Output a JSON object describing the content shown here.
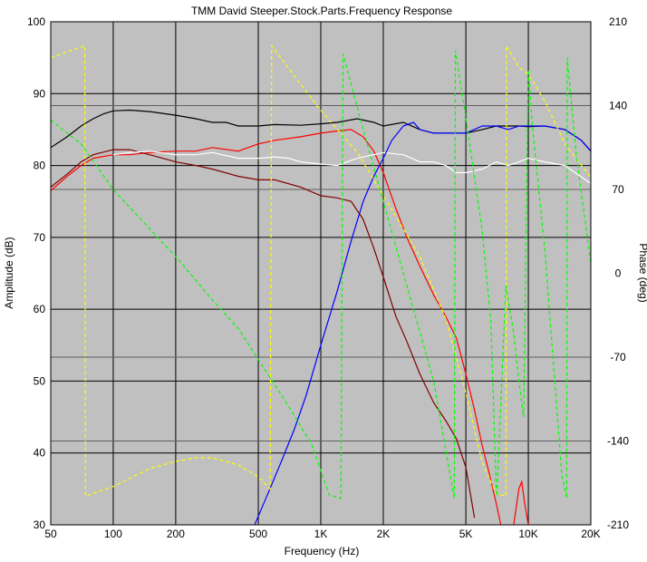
{
  "chart_data": {
    "type": "line",
    "title": "TMM David Steeper.Stock.Parts.Frequency Response",
    "xlabel": "Frequency (Hz)",
    "ylabel": "Amplitude (dB)",
    "y2label": "Phase (deg)",
    "x_scale": "log",
    "xlim": [
      50,
      20000
    ],
    "ylim": [
      30,
      100
    ],
    "y2lim": [
      -210,
      210
    ],
    "grid": true,
    "plot_background": "#c0c0c0",
    "x_ticks": [
      {
        "v": 50,
        "label": "50"
      },
      {
        "v": 100,
        "label": "100"
      },
      {
        "v": 200,
        "label": "200"
      },
      {
        "v": 500,
        "label": "500"
      },
      {
        "v": 1000,
        "label": "1K"
      },
      {
        "v": 2000,
        "label": "2K"
      },
      {
        "v": 5000,
        "label": "5K"
      },
      {
        "v": 10000,
        "label": "10K"
      },
      {
        "v": 20000,
        "label": "20K"
      }
    ],
    "y_ticks": [
      30,
      40,
      50,
      60,
      70,
      80,
      90,
      100
    ],
    "y2_ticks": [
      {
        "v": 210,
        "label": "210"
      },
      {
        "v": 140,
        "label": "140"
      },
      {
        "v": 70,
        "label": "70"
      },
      {
        "v": 0,
        "label": "0"
      },
      {
        "v": -70,
        "label": "-70"
      },
      {
        "v": -140,
        "label": "-140"
      },
      {
        "v": -210,
        "label": "-210"
      }
    ],
    "series": [
      {
        "color": "#000000",
        "axis": "left",
        "style": "solid",
        "x": [
          50,
          60,
          70,
          80,
          90,
          100,
          120,
          150,
          200,
          250,
          300,
          350,
          400,
          500,
          600,
          800,
          1000,
          1200,
          1500,
          1800,
          2000,
          2500,
          3000,
          3500,
          4000,
          5000,
          6000,
          7000,
          8000,
          9000,
          10000,
          12000,
          15000,
          18000,
          20000
        ],
        "y": [
          82.5,
          84,
          85.5,
          86.5,
          87.2,
          87.6,
          87.7,
          87.5,
          87,
          86.5,
          86,
          86,
          85.5,
          85.5,
          85.7,
          85.6,
          85.8,
          86,
          86.5,
          86,
          85.5,
          86,
          85,
          84.5,
          84.5,
          84.5,
          85,
          85.5,
          85.5,
          85.5,
          85.4,
          85.5,
          85,
          83.5,
          82
        ]
      },
      {
        "color": "#ff0000",
        "axis": "left",
        "style": "solid",
        "x": [
          50,
          60,
          70,
          80,
          100,
          120,
          150,
          200,
          250,
          300,
          400,
          500,
          600,
          800,
          1000,
          1200,
          1400,
          1600,
          1800,
          2000,
          2300,
          2600,
          3000,
          3500,
          4000,
          4500,
          5000,
          5500,
          6000,
          6500,
          7000,
          7500,
          8000,
          8500,
          9000,
          9300,
          9600,
          10000,
          10500
        ],
        "y": [
          76.5,
          78.5,
          80,
          81,
          81.5,
          81.5,
          81.8,
          82,
          82,
          82.5,
          82,
          83,
          83.5,
          84,
          84.5,
          84.8,
          85,
          84,
          82,
          79,
          74,
          70,
          66,
          62,
          59,
          56,
          51,
          46,
          41,
          37,
          33,
          29,
          27,
          30,
          35,
          36,
          33,
          30,
          27
        ]
      },
      {
        "color": "#800000",
        "axis": "left",
        "style": "solid",
        "x": [
          50,
          60,
          70,
          80,
          100,
          120,
          150,
          200,
          250,
          300,
          400,
          500,
          600,
          800,
          1000,
          1200,
          1400,
          1600,
          1800,
          2000,
          2300,
          2600,
          3000,
          3500,
          4000,
          4500,
          5000,
          5500
        ],
        "y": [
          77,
          78.8,
          80.5,
          81.5,
          82.2,
          82.2,
          81.5,
          80.5,
          80,
          79.5,
          78.5,
          78,
          78,
          77,
          75.8,
          75.5,
          75,
          72.5,
          68.5,
          64.5,
          59,
          55.5,
          51,
          47,
          44.5,
          42,
          38,
          31
        ]
      },
      {
        "color": "#ffffff",
        "axis": "left",
        "style": "solid",
        "x": [
          100,
          120,
          150,
          200,
          250,
          300,
          400,
          500,
          600,
          700,
          800,
          1000,
          1200,
          1500,
          1800,
          2000,
          2500,
          3000,
          3500,
          4000,
          4500,
          5000,
          6000,
          7000,
          8000,
          9000,
          10000,
          12000,
          15000,
          20000
        ],
        "y": [
          81.5,
          81.8,
          82,
          81.5,
          81.5,
          81.8,
          81,
          81,
          81.2,
          81,
          80.5,
          80.2,
          80,
          81,
          81.5,
          81.8,
          81.5,
          80.5,
          80.5,
          80,
          79,
          79,
          79.5,
          80.5,
          80,
          80.5,
          81,
          80.5,
          80,
          77.5
        ]
      },
      {
        "color": "#0000ff",
        "axis": "left",
        "style": "solid",
        "x": [
          480,
          550,
          650,
          750,
          850,
          1000,
          1200,
          1400,
          1600,
          1800,
          2000,
          2200,
          2500,
          2800,
          3000,
          3500,
          4000,
          5000,
          6000,
          7000,
          8000,
          9000,
          10000,
          12000,
          15000,
          18000,
          20000
        ],
        "y": [
          30,
          34,
          39,
          43.5,
          48,
          55,
          62.5,
          69.5,
          75,
          78.5,
          81,
          83.5,
          85.5,
          86,
          85,
          84.5,
          84.5,
          84.5,
          85.5,
          85.5,
          85,
          85.5,
          85.5,
          85.5,
          85,
          83.5,
          82
        ]
      },
      {
        "color": "#ffff00",
        "axis": "right",
        "style": "dashed",
        "x": [
          50,
          73,
          73.5,
          100,
          150,
          200,
          250,
          300,
          400,
          500,
          570,
          580,
          700,
          800,
          1000,
          1500,
          2000,
          3000,
          4000,
          5000,
          6000,
          7000,
          7800,
          7850,
          9000,
          10000,
          12000,
          15000,
          20000
        ],
        "y": [
          180,
          190,
          -186,
          -178,
          -163,
          -157,
          -154,
          -154,
          -160,
          -170,
          -180,
          190,
          171,
          158,
          136,
          101,
          65,
          14,
          -38,
          -100,
          -158,
          -184,
          -186,
          190,
          172,
          166,
          144,
          108,
          80
        ]
      },
      {
        "color": "#00ff00",
        "axis": "right",
        "style": "dashed",
        "x": [
          50,
          70,
          100,
          150,
          200,
          300,
          400,
          500,
          700,
          900,
          1100,
          1250,
          1280,
          1600,
          2000,
          2500,
          3500,
          4400,
          4450,
          5000,
          6000,
          6600,
          7000,
          7050,
          7800,
          8500,
          9000,
          9500,
          10000,
          10500,
          12000,
          14500,
          15300,
          15400,
          17000,
          20000
        ],
        "y": [
          128,
          108,
          70,
          37,
          14,
          -22,
          -46,
          -72,
          -111,
          -142,
          -185,
          -188,
          183,
          120,
          60,
          0,
          -90,
          -188,
          186,
          130,
          35,
          -40,
          -180,
          -186,
          -10,
          -50,
          -90,
          -120,
          170,
          120,
          20,
          -168,
          -188,
          180,
          100,
          8
        ]
      }
    ]
  }
}
